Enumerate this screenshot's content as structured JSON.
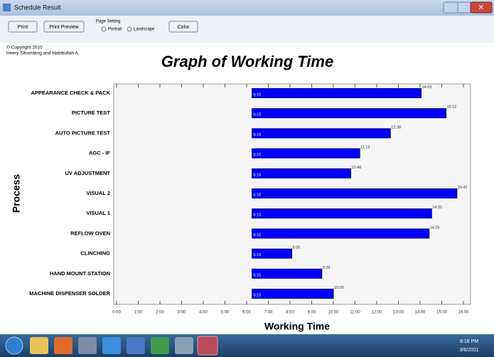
{
  "window": {
    "title": "Schedule Result"
  },
  "toolbar": {
    "print": "Print",
    "print_preview": "Print Preview",
    "page_setting": "Page Setting",
    "portrait": "Portrait",
    "landscape": "Landscape",
    "color": "Color"
  },
  "copyright": [
    "© Copyright 2010",
    "Heery Sihombing and Habibullah A."
  ],
  "taskbar": {
    "time": "8:18 PM",
    "date": "3/6/2011"
  },
  "chart_data": {
    "type": "floating-bar",
    "orientation": "horizontal",
    "title": "Graph of Working Time",
    "x_label": "Working Time",
    "y_label": "Process",
    "categories": [
      "APPEARANCE CHECK & PACK",
      "PICTURE TEST",
      "AUTO PICTURE TEST",
      "AGC - IF",
      "UV ADJUSTMENT",
      "VISUAL 2",
      "VISUAL 1",
      "REFLOW OVEN",
      "CLINCHING",
      "HAND MOUNT STATION",
      "MACHINE DISPENSER SOLDER"
    ],
    "starts": [
      6.25,
      6.25,
      6.25,
      6.25,
      6.25,
      6.25,
      6.25,
      6.25,
      6.25,
      6.25,
      6.25
    ],
    "start_labels": [
      "6:15",
      "6:15",
      "6:15",
      "6:15",
      "6:15",
      "6:15",
      "6:15",
      "6:15",
      "6:15",
      "6:15",
      "6:15"
    ],
    "values": [
      14.05,
      15.2,
      12.633,
      11.217,
      10.8,
      15.7,
      14.533,
      14.417,
      8.083,
      9.467,
      10
    ],
    "value_labels": [
      "14:03",
      "15:12",
      "12:38",
      "11:13",
      "10:48",
      "15:42",
      "14:32",
      "14:25",
      "8:05",
      "9:28",
      "10:00"
    ],
    "color": "#0000ff",
    "xlim": [
      0,
      16
    ],
    "xticks": [
      {
        "value": 0,
        "label": "0:00"
      },
      {
        "value": 1,
        "label": "1:00"
      },
      {
        "value": 2,
        "label": "2:00"
      },
      {
        "value": 3,
        "label": "3:00"
      },
      {
        "value": 4,
        "label": "4:00"
      },
      {
        "value": 5,
        "label": "5:00"
      },
      {
        "value": 6,
        "label": "6:00"
      },
      {
        "value": 7,
        "label": "7:00"
      },
      {
        "value": 8,
        "label": "8:00"
      },
      {
        "value": 9,
        "label": "9:00"
      },
      {
        "value": 10,
        "label": "10:00"
      },
      {
        "value": 11,
        "label": "11:00"
      },
      {
        "value": 12,
        "label": "12:00"
      },
      {
        "value": 13,
        "label": "13:00"
      },
      {
        "value": 14,
        "label": "14:00"
      },
      {
        "value": 15,
        "label": "15:00"
      },
      {
        "value": 16,
        "label": "16:00"
      }
    ]
  }
}
